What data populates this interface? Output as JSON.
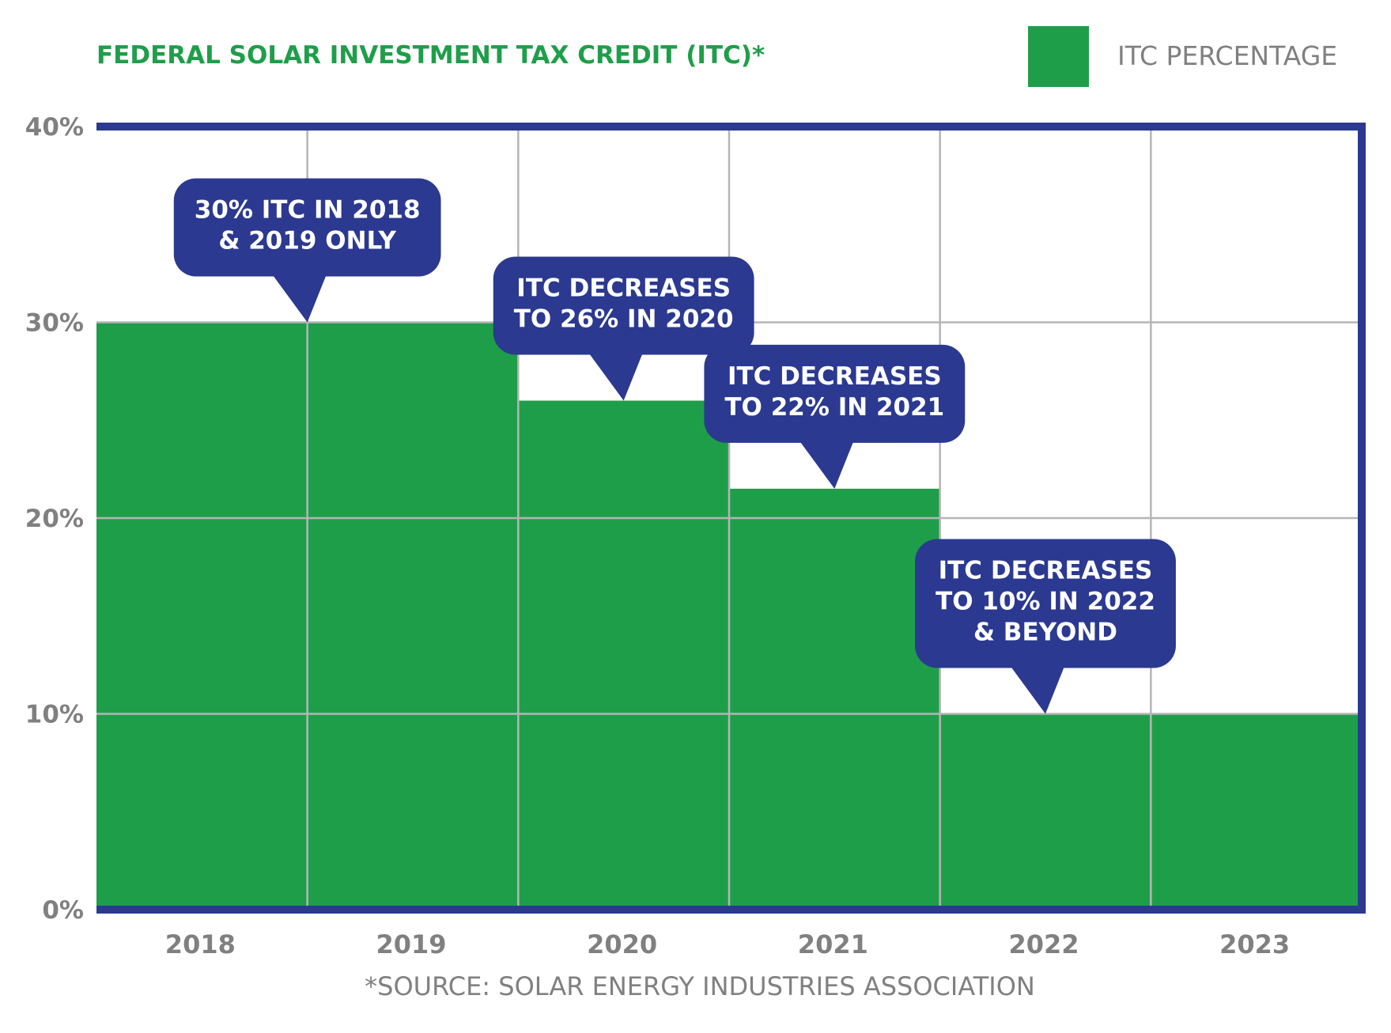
{
  "chart_data": {
    "type": "bar",
    "title": "FEDERAL SOLAR INVESTMENT TAX CREDIT (ITC)*",
    "legend": [
      {
        "name": "ITC PERCENTAGE",
        "color": "#1f9e4a",
        "placement": "top-right"
      }
    ],
    "categories": [
      "2018",
      "2019",
      "2020",
      "2021",
      "2022",
      "2023"
    ],
    "series": [
      {
        "name": "ITC PERCENTAGE",
        "values": [
          30,
          30,
          26,
          21.5,
          10,
          10
        ]
      }
    ],
    "y_ticks": [
      "0%",
      "10%",
      "20%",
      "30%",
      "40%"
    ],
    "y_tick_values": [
      0,
      10,
      20,
      30,
      40
    ],
    "ylim": [
      0,
      40
    ],
    "grid": true,
    "xlabel": "",
    "ylabel": "",
    "source": "*SOURCE:  SOLAR ENERGY INDUSTRIES ASSOCIATION",
    "annotations": [
      {
        "lines": [
          "30% ITC IN 2018",
          "& 2019 ONLY"
        ],
        "x_value": 1.0,
        "y_value": 30
      },
      {
        "lines": [
          "ITC DECREASES",
          "TO 26% IN 2020"
        ],
        "x_value": 2.5,
        "y_value": 26
      },
      {
        "lines": [
          "ITC DECREASES",
          "TO 22% IN 2021"
        ],
        "x_value": 3.5,
        "y_value": 21.5
      },
      {
        "lines": [
          "ITC DECREASES",
          "TO 10% IN 2022",
          "& BEYOND"
        ],
        "x_value": 4.5,
        "y_value": 10
      }
    ]
  },
  "colors": {
    "bar": "#1f9e4a",
    "frame": "#2b3990",
    "grid": "#b5b5b5",
    "title": "#1f9e4a",
    "text": "#808080",
    "callout_bg": "#2b3990",
    "callout_text": "#ffffff"
  }
}
